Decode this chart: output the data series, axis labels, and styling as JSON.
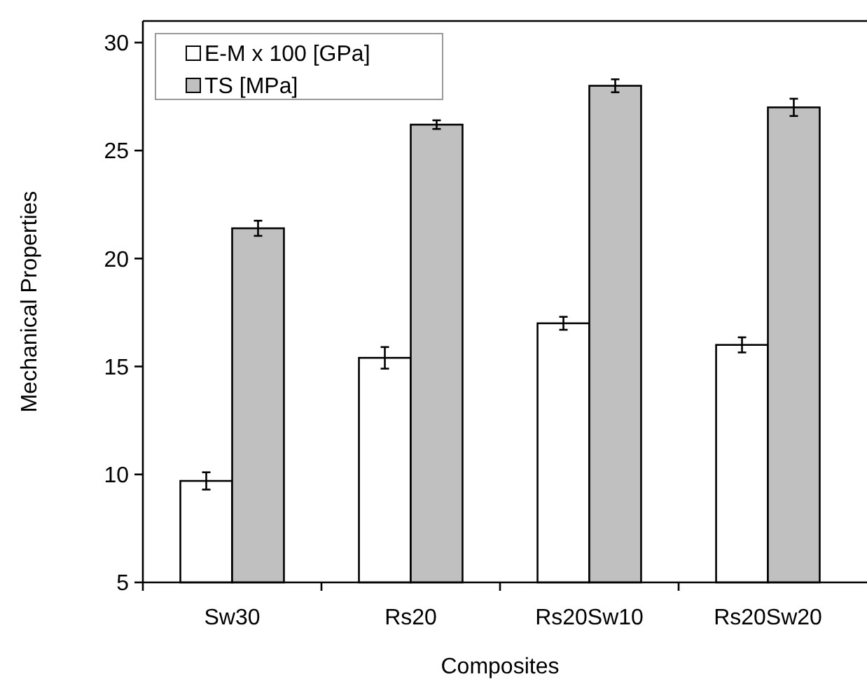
{
  "chart_data": {
    "type": "bar",
    "xlabel": "Composites",
    "ylabel": "Mechanical Properties",
    "categories": [
      "Sw30",
      "Rs20",
      "Rs20Sw10",
      "Rs20Sw20"
    ],
    "series": [
      {
        "name": "E-M x 100 [GPa]",
        "color": "#ffffff",
        "values": [
          9.7,
          15.4,
          17.0,
          16.0
        ],
        "errors": [
          0.4,
          0.5,
          0.3,
          0.35
        ]
      },
      {
        "name": "TS [MPa]",
        "color": "#c0c0c0",
        "values": [
          21.4,
          26.2,
          28.0,
          27.0
        ],
        "errors": [
          0.35,
          0.2,
          0.3,
          0.4
        ]
      }
    ],
    "ylim": [
      5,
      31
    ],
    "yticks": [
      5,
      10,
      15,
      20,
      25,
      30
    ],
    "grid": false,
    "legend": "top left"
  }
}
